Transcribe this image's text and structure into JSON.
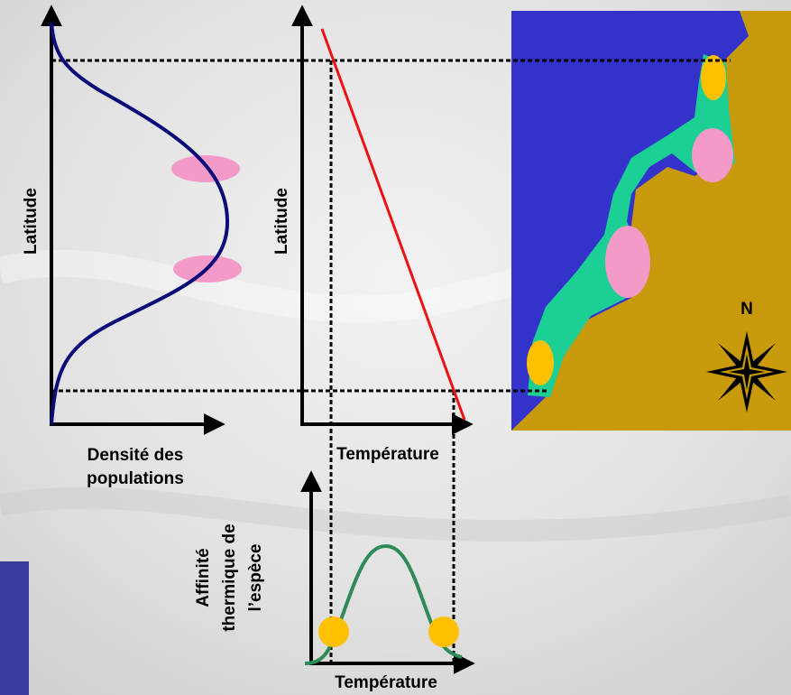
{
  "panels": [
    {
      "y_axis_label": "Latitude",
      "x_axis_label": [
        "Densité des",
        "populations"
      ]
    },
    {
      "y_axis_label": "Latitude",
      "x_axis_label": "Température"
    },
    {
      "y_axis_label": [
        "Affinité",
        "thermique de",
        "l’espèce"
      ],
      "x_axis_label": "Température"
    }
  ],
  "map": {
    "compass_label": "N"
  }
}
